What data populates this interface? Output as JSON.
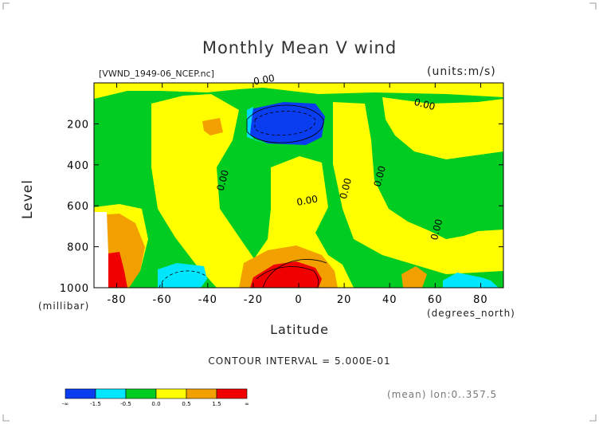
{
  "header": {
    "title": "Monthly Mean V wind",
    "file_label": "[VWND_1949-06_NCEP.nc]",
    "units_label": "(units:m/s)"
  },
  "footer": {
    "contour_interval": "CONTOUR INTERVAL = 5.000E-01",
    "mean_note": "(mean) lon:0..357.5"
  },
  "chart_data": {
    "type": "heatmap",
    "title": "Monthly Mean V wind",
    "xlabel": "Latitude",
    "x_unit": "(degrees_north)",
    "ylabel": "Level",
    "y_unit": "(millibar)",
    "xlim": [
      -90,
      90
    ],
    "ylim": [
      1000,
      0
    ],
    "x_ticks": [
      -80,
      -60,
      -40,
      -20,
      0,
      20,
      40,
      60,
      80
    ],
    "y_ticks": [
      200,
      400,
      600,
      800,
      1000
    ],
    "contour_labels": [
      {
        "text": "0.00",
        "x": -15,
        "y": 0
      },
      {
        "text": "0.00",
        "x": 55,
        "y": 120
      },
      {
        "text": "0.00",
        "x": -32,
        "y": 480
      },
      {
        "text": "0.00",
        "x": 4,
        "y": 590
      },
      {
        "text": "0.00",
        "x": 22,
        "y": 520
      },
      {
        "text": "0.00",
        "x": 37,
        "y": 460
      },
      {
        "text": "0.00",
        "x": 62,
        "y": 720
      }
    ],
    "colorbar": {
      "labels": [
        "-∞",
        "-1.5",
        "-0.5",
        "0.0",
        "0.5",
        "1.5",
        "∞"
      ],
      "colors": [
        "#0a3cf0",
        "#00e6ff",
        "#00cc22",
        "#ffff00",
        "#f2a000",
        "#f00000"
      ]
    },
    "level_colors": {
      "strong_neg": "#0a3cf0",
      "neg": "#00e6ff",
      "near_zero_neg": "#00cc22",
      "near_zero_pos": "#ffff00",
      "pos": "#f2a000",
      "strong_pos": "#f00000"
    }
  }
}
